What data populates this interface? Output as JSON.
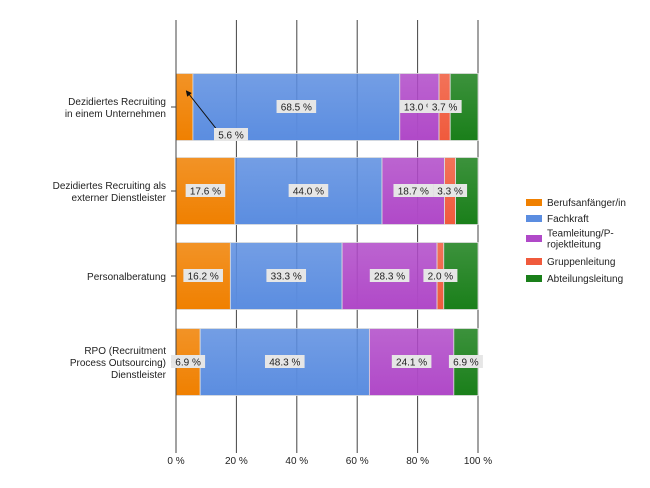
{
  "chart_data": {
    "type": "bar",
    "orientation": "horizontal",
    "stacked": "percent",
    "categories": [
      [
        "Dezidiertes Recruiting",
        "in einem Unternehmen"
      ],
      [
        "Dezidiertes Recruiting als",
        "externer Dienstleister"
      ],
      [
        "Personalberatung"
      ],
      [
        "RPO (Recruitment",
        "Process Outsourcing)",
        "Dienstleister"
      ]
    ],
    "series": [
      {
        "name": "Berufsanfänger/in",
        "color": "#f08000",
        "values": [
          5.6,
          17.6,
          16.2,
          6.9
        ],
        "labels": [
          "5.6 %",
          "17.6 %",
          "16.2 %",
          "6.9 %"
        ]
      },
      {
        "name": "Fachkraft",
        "color": "#5b8de0",
        "values": [
          68.5,
          44.0,
          33.3,
          48.3
        ],
        "labels": [
          "68.5 %",
          "44.0 %",
          "33.3 %",
          "48.3 %"
        ]
      },
      {
        "name": "Teamleitung/P-rojektleitung",
        "legend_lines": [
          "Teamleitung/P-",
          "rojektleitung"
        ],
        "color": "#b049c8",
        "values": [
          13.0,
          18.7,
          28.3,
          24.1
        ],
        "labels": [
          "13.0 %",
          "18.7 %",
          "28.3 %",
          "24.1 %"
        ]
      },
      {
        "name": "Gruppenleitung",
        "color": "#f05a3c",
        "values": [
          3.7,
          3.3,
          2.0,
          0
        ],
        "labels": [
          "3.7 %",
          "3.3 %",
          "2.0 %",
          null
        ]
      },
      {
        "name": "Abteilungsleitung",
        "color": "#1a7f1a",
        "values": [
          9.2,
          6.7,
          10.2,
          6.9
        ],
        "labels": [
          null,
          null,
          null,
          "6.9 %"
        ]
      }
    ],
    "x_ticks": [
      "0 %",
      "20 %",
      "40 %",
      "60 %",
      "80 %",
      "100 %"
    ],
    "xlim": [
      0,
      100
    ],
    "grid": true,
    "legend_position": "right"
  }
}
